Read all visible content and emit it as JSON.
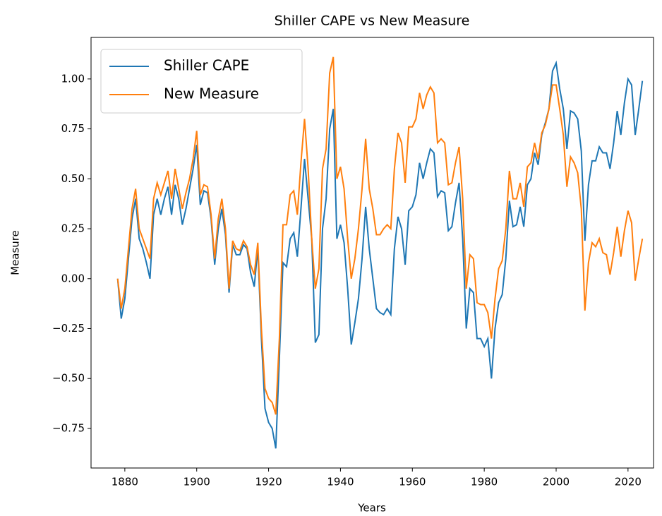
{
  "chart_data": {
    "type": "line",
    "title": "Shiller CAPE vs New Measure",
    "xlabel": "Years",
    "ylabel": "Measure",
    "x": [
      1878,
      1879,
      1880,
      1881,
      1882,
      1883,
      1884,
      1885,
      1886,
      1887,
      1888,
      1889,
      1890,
      1891,
      1892,
      1893,
      1894,
      1895,
      1896,
      1897,
      1898,
      1899,
      1900,
      1901,
      1902,
      1903,
      1904,
      1905,
      1906,
      1907,
      1908,
      1909,
      1910,
      1911,
      1912,
      1913,
      1914,
      1915,
      1916,
      1917,
      1918,
      1919,
      1920,
      1921,
      1922,
      1923,
      1924,
      1925,
      1926,
      1927,
      1928,
      1929,
      1930,
      1931,
      1932,
      1933,
      1934,
      1935,
      1936,
      1937,
      1938,
      1939,
      1940,
      1941,
      1942,
      1943,
      1944,
      1945,
      1946,
      1947,
      1948,
      1949,
      1950,
      1951,
      1952,
      1953,
      1954,
      1955,
      1956,
      1957,
      1958,
      1959,
      1960,
      1961,
      1962,
      1963,
      1964,
      1965,
      1966,
      1967,
      1968,
      1969,
      1970,
      1971,
      1972,
      1973,
      1974,
      1975,
      1976,
      1977,
      1978,
      1979,
      1980,
      1981,
      1982,
      1983,
      1984,
      1985,
      1986,
      1987,
      1988,
      1989,
      1990,
      1991,
      1992,
      1993,
      1994,
      1995,
      1996,
      1997,
      1998,
      1999,
      2000,
      2001,
      2002,
      2003,
      2004,
      2005,
      2006,
      2007,
      2008,
      2009,
      2010,
      2011,
      2012,
      2013,
      2014,
      2015,
      2016,
      2017,
      2018,
      2019,
      2020,
      2021,
      2022,
      2023,
      2024
    ],
    "series": [
      {
        "name": "Shiller CAPE",
        "color": "#1f77b4",
        "values": [
          0.0,
          -0.2,
          -0.1,
          0.1,
          0.3,
          0.4,
          0.2,
          0.15,
          0.08,
          0.0,
          0.32,
          0.4,
          0.32,
          0.4,
          0.46,
          0.32,
          0.47,
          0.4,
          0.27,
          0.35,
          0.45,
          0.55,
          0.67,
          0.37,
          0.44,
          0.43,
          0.3,
          0.07,
          0.25,
          0.35,
          0.22,
          -0.07,
          0.17,
          0.12,
          0.12,
          0.17,
          0.15,
          0.03,
          -0.04,
          0.15,
          -0.3,
          -0.65,
          -0.72,
          -0.75,
          -0.85,
          -0.4,
          0.08,
          0.06,
          0.2,
          0.23,
          0.11,
          0.35,
          0.6,
          0.4,
          0.2,
          -0.32,
          -0.28,
          0.25,
          0.4,
          0.75,
          0.85,
          0.2,
          0.27,
          0.18,
          -0.05,
          -0.33,
          -0.22,
          -0.1,
          0.1,
          0.36,
          0.15,
          0.0,
          -0.15,
          -0.17,
          -0.18,
          -0.15,
          -0.18,
          0.15,
          0.31,
          0.25,
          0.07,
          0.34,
          0.36,
          0.42,
          0.58,
          0.5,
          0.58,
          0.65,
          0.63,
          0.41,
          0.44,
          0.43,
          0.24,
          0.26,
          0.38,
          0.48,
          0.2,
          -0.25,
          -0.05,
          -0.07,
          -0.3,
          -0.3,
          -0.34,
          -0.3,
          -0.5,
          -0.25,
          -0.12,
          -0.08,
          0.1,
          0.39,
          0.26,
          0.27,
          0.36,
          0.26,
          0.47,
          0.5,
          0.63,
          0.57,
          0.72,
          0.78,
          0.85,
          1.04,
          1.08,
          0.95,
          0.85,
          0.65,
          0.84,
          0.83,
          0.8,
          0.64,
          0.19,
          0.47,
          0.59,
          0.59,
          0.66,
          0.63,
          0.63,
          0.55,
          0.68,
          0.84,
          0.72,
          0.88,
          1.0,
          0.97,
          0.72,
          0.85,
          0.99
        ]
      },
      {
        "name": "New Measure",
        "color": "#ff7f0e",
        "values": [
          0.0,
          -0.15,
          -0.05,
          0.15,
          0.35,
          0.45,
          0.25,
          0.2,
          0.15,
          0.1,
          0.4,
          0.48,
          0.42,
          0.48,
          0.54,
          0.4,
          0.55,
          0.45,
          0.35,
          0.43,
          0.5,
          0.6,
          0.74,
          0.42,
          0.47,
          0.46,
          0.32,
          0.1,
          0.3,
          0.4,
          0.25,
          -0.05,
          0.19,
          0.15,
          0.14,
          0.19,
          0.16,
          0.07,
          0.02,
          0.18,
          -0.25,
          -0.55,
          -0.6,
          -0.62,
          -0.68,
          -0.3,
          0.27,
          0.27,
          0.42,
          0.44,
          0.32,
          0.58,
          0.8,
          0.55,
          0.2,
          -0.05,
          0.05,
          0.55,
          0.65,
          1.03,
          1.11,
          0.5,
          0.56,
          0.45,
          0.2,
          0.0,
          0.1,
          0.25,
          0.45,
          0.7,
          0.45,
          0.35,
          0.22,
          0.22,
          0.25,
          0.27,
          0.25,
          0.55,
          0.73,
          0.68,
          0.48,
          0.76,
          0.76,
          0.8,
          0.93,
          0.85,
          0.92,
          0.96,
          0.93,
          0.68,
          0.7,
          0.68,
          0.47,
          0.48,
          0.58,
          0.66,
          0.4,
          -0.05,
          0.12,
          0.1,
          -0.12,
          -0.13,
          -0.13,
          -0.17,
          -0.3,
          -0.1,
          0.05,
          0.09,
          0.25,
          0.54,
          0.4,
          0.4,
          0.48,
          0.36,
          0.56,
          0.58,
          0.68,
          0.6,
          0.73,
          0.77,
          0.85,
          0.97,
          0.97,
          0.85,
          0.72,
          0.46,
          0.61,
          0.58,
          0.53,
          0.35,
          -0.16,
          0.08,
          0.18,
          0.16,
          0.2,
          0.13,
          0.12,
          0.02,
          0.13,
          0.26,
          0.11,
          0.24,
          0.34,
          0.28,
          -0.01,
          0.1,
          0.2
        ]
      }
    ],
    "xlim": [
      1870.6,
      2027.1
    ],
    "xticks": [
      1880,
      1900,
      1920,
      1940,
      1960,
      1980,
      2000,
      2020
    ],
    "ylim": [
      -0.948,
      1.208
    ],
    "yticks": [
      {
        "value": -0.75,
        "label": "−0.75"
      },
      {
        "value": -0.5,
        "label": "−0.50"
      },
      {
        "value": -0.25,
        "label": "−0.25"
      },
      {
        "value": 0,
        "label": "0.00"
      },
      0.25,
      {
        "value": 0.5,
        "label": "0.50"
      },
      0.75,
      {
        "value": 1,
        "label": "1.00"
      }
    ],
    "legend": "upper left",
    "grid": false
  }
}
